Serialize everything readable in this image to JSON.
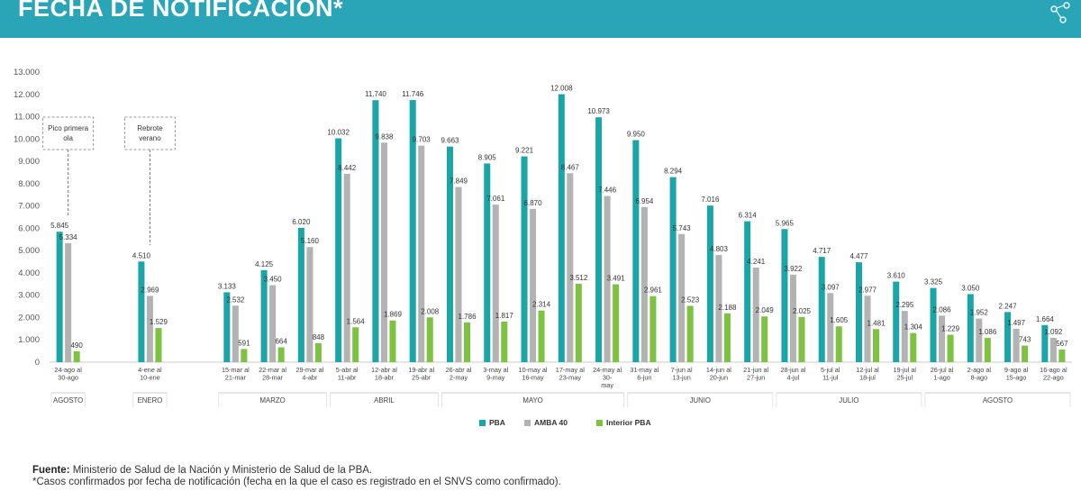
{
  "header": {
    "title": "FECHA DE NOTIFICACIÓN*"
  },
  "footer": {
    "source_label": "Fuente:",
    "source_text": " Ministerio de Salud de la Nación y Ministerio de Salud de la PBA.",
    "note": "*Casos confirmados por fecha de notificación (fecha en la que el caso es registrado en el SNVS como confirmado)."
  },
  "colors": {
    "header": "#2aa5b8",
    "pba": "#1aa6a8",
    "amba": "#b3b3b3",
    "interior": "#7ec242"
  },
  "chart_data": {
    "type": "bar",
    "ylim": [
      0,
      13000
    ],
    "yticks": [
      "0",
      "1.000",
      "2.000",
      "3.000",
      "4.000",
      "5.000",
      "6.000",
      "7.000",
      "8.000",
      "9.000",
      "10.000",
      "11.000",
      "12.000",
      "13.000"
    ],
    "categories": [
      [
        "24-ago al",
        "30-ago"
      ],
      [
        "4-ene al",
        "10-ene"
      ],
      [
        "15-mar al",
        "21-mar"
      ],
      [
        "22-mar al",
        "28-mar"
      ],
      [
        "29-mar al",
        "4-abr"
      ],
      [
        "5-abr al",
        "11-abr"
      ],
      [
        "12-abr al",
        "18-abr"
      ],
      [
        "19-abr al",
        "25-abr"
      ],
      [
        "26-abr al",
        "2-may"
      ],
      [
        "3-may al",
        "9-may"
      ],
      [
        "10-may al",
        "16-may"
      ],
      [
        "17-may al",
        "23-may"
      ],
      [
        "24-may al",
        "30-",
        "may"
      ],
      [
        "31-may al",
        "6-jun"
      ],
      [
        "7-jun al",
        "13-jun"
      ],
      [
        "14-jun al",
        "20-jun"
      ],
      [
        "21-jun al",
        "27-jun"
      ],
      [
        "28-jun al",
        "4-jul"
      ],
      [
        "5-jul al",
        "11-jul"
      ],
      [
        "12-jul al",
        "18-jul"
      ],
      [
        "19-jul al",
        "25-jul"
      ],
      [
        "26-jul al",
        "1-ago"
      ],
      [
        "2-ago al",
        "8-ago"
      ],
      [
        "9-ago al",
        "15-ago"
      ],
      [
        "16-ago al",
        "22-ago"
      ]
    ],
    "series": [
      {
        "name": "PBA",
        "values": [
          5845,
          4510,
          3133,
          4125,
          6020,
          10032,
          11740,
          11746,
          9663,
          8905,
          9221,
          12008,
          10973,
          9950,
          8294,
          7016,
          6314,
          5965,
          4717,
          4477,
          3610,
          3325,
          3050,
          2247,
          1664
        ],
        "labels": [
          "5.845",
          "4.510",
          "3.133",
          "4.125",
          "6.020",
          "10.032",
          "11.740",
          "11.746",
          "9.663",
          "8.905",
          "9.221",
          "12.008",
          "10.973",
          "9.950",
          "8.294",
          "7.016",
          "6.314",
          "5.965",
          "4.717",
          "4.477",
          "3.610",
          "3.325",
          "3.050",
          "2.247",
          "1.664"
        ]
      },
      {
        "name": "AMBA 40",
        "values": [
          5334,
          2969,
          2532,
          3450,
          5160,
          8442,
          9838,
          9703,
          7849,
          7061,
          6870,
          8467,
          7446,
          6954,
          5743,
          4803,
          4241,
          3922,
          3097,
          2977,
          2295,
          2086,
          1952,
          1497,
          1092
        ],
        "labels": [
          "5.334",
          "2.969",
          "2.532",
          "3.450",
          "5.160",
          "8.442",
          "9.838",
          "9.703",
          "7.849",
          "7.061",
          "6.870",
          "8.467",
          "7.446",
          "6.954",
          "5.743",
          "4.803",
          "4.241",
          "3.922",
          "3.097",
          "2.977",
          "2.295",
          "2.086",
          "1.952",
          "1.497",
          "1.092"
        ]
      },
      {
        "name": "Interior PBA",
        "values": [
          490,
          1529,
          591,
          664,
          848,
          1564,
          1869,
          2008,
          1786,
          1817,
          2314,
          3512,
          3491,
          2961,
          2523,
          2188,
          2049,
          2025,
          1605,
          1481,
          1304,
          1229,
          1086,
          743,
          567
        ],
        "labels": [
          "490",
          "1.529",
          "591",
          "664",
          "848",
          "1.564",
          "1.869",
          "2.008",
          "1.786",
          "1.817",
          "2.314",
          "3.512",
          "3.491",
          "2.961",
          "2.523",
          "2.188",
          "2.049",
          "2.025",
          "1.605",
          "1.481",
          "1.304",
          "1.229",
          "1.086",
          "743",
          "567"
        ]
      }
    ],
    "months": [
      {
        "label": "AGOSTO",
        "from": 0,
        "to": 0
      },
      {
        "label": "ENERO",
        "from": 1,
        "to": 1
      },
      {
        "label": "MARZO",
        "from": 2,
        "to": 4
      },
      {
        "label": "ABRIL",
        "from": 5,
        "to": 7
      },
      {
        "label": "MAYO",
        "from": 8,
        "to": 12
      },
      {
        "label": "JUNIO",
        "from": 13,
        "to": 16
      },
      {
        "label": "JULIO",
        "from": 17,
        "to": 20
      },
      {
        "label": "AGOSTO",
        "from": 21,
        "to": 24
      }
    ],
    "annotations": [
      {
        "lines": [
          "Pico primera",
          "ola"
        ],
        "index": 0
      },
      {
        "lines": [
          "Rebrote",
          "verano"
        ],
        "index": 1
      }
    ],
    "legend": {
      "position": "bottom",
      "items": [
        "PBA",
        "AMBA 40",
        "Interior PBA"
      ]
    }
  }
}
